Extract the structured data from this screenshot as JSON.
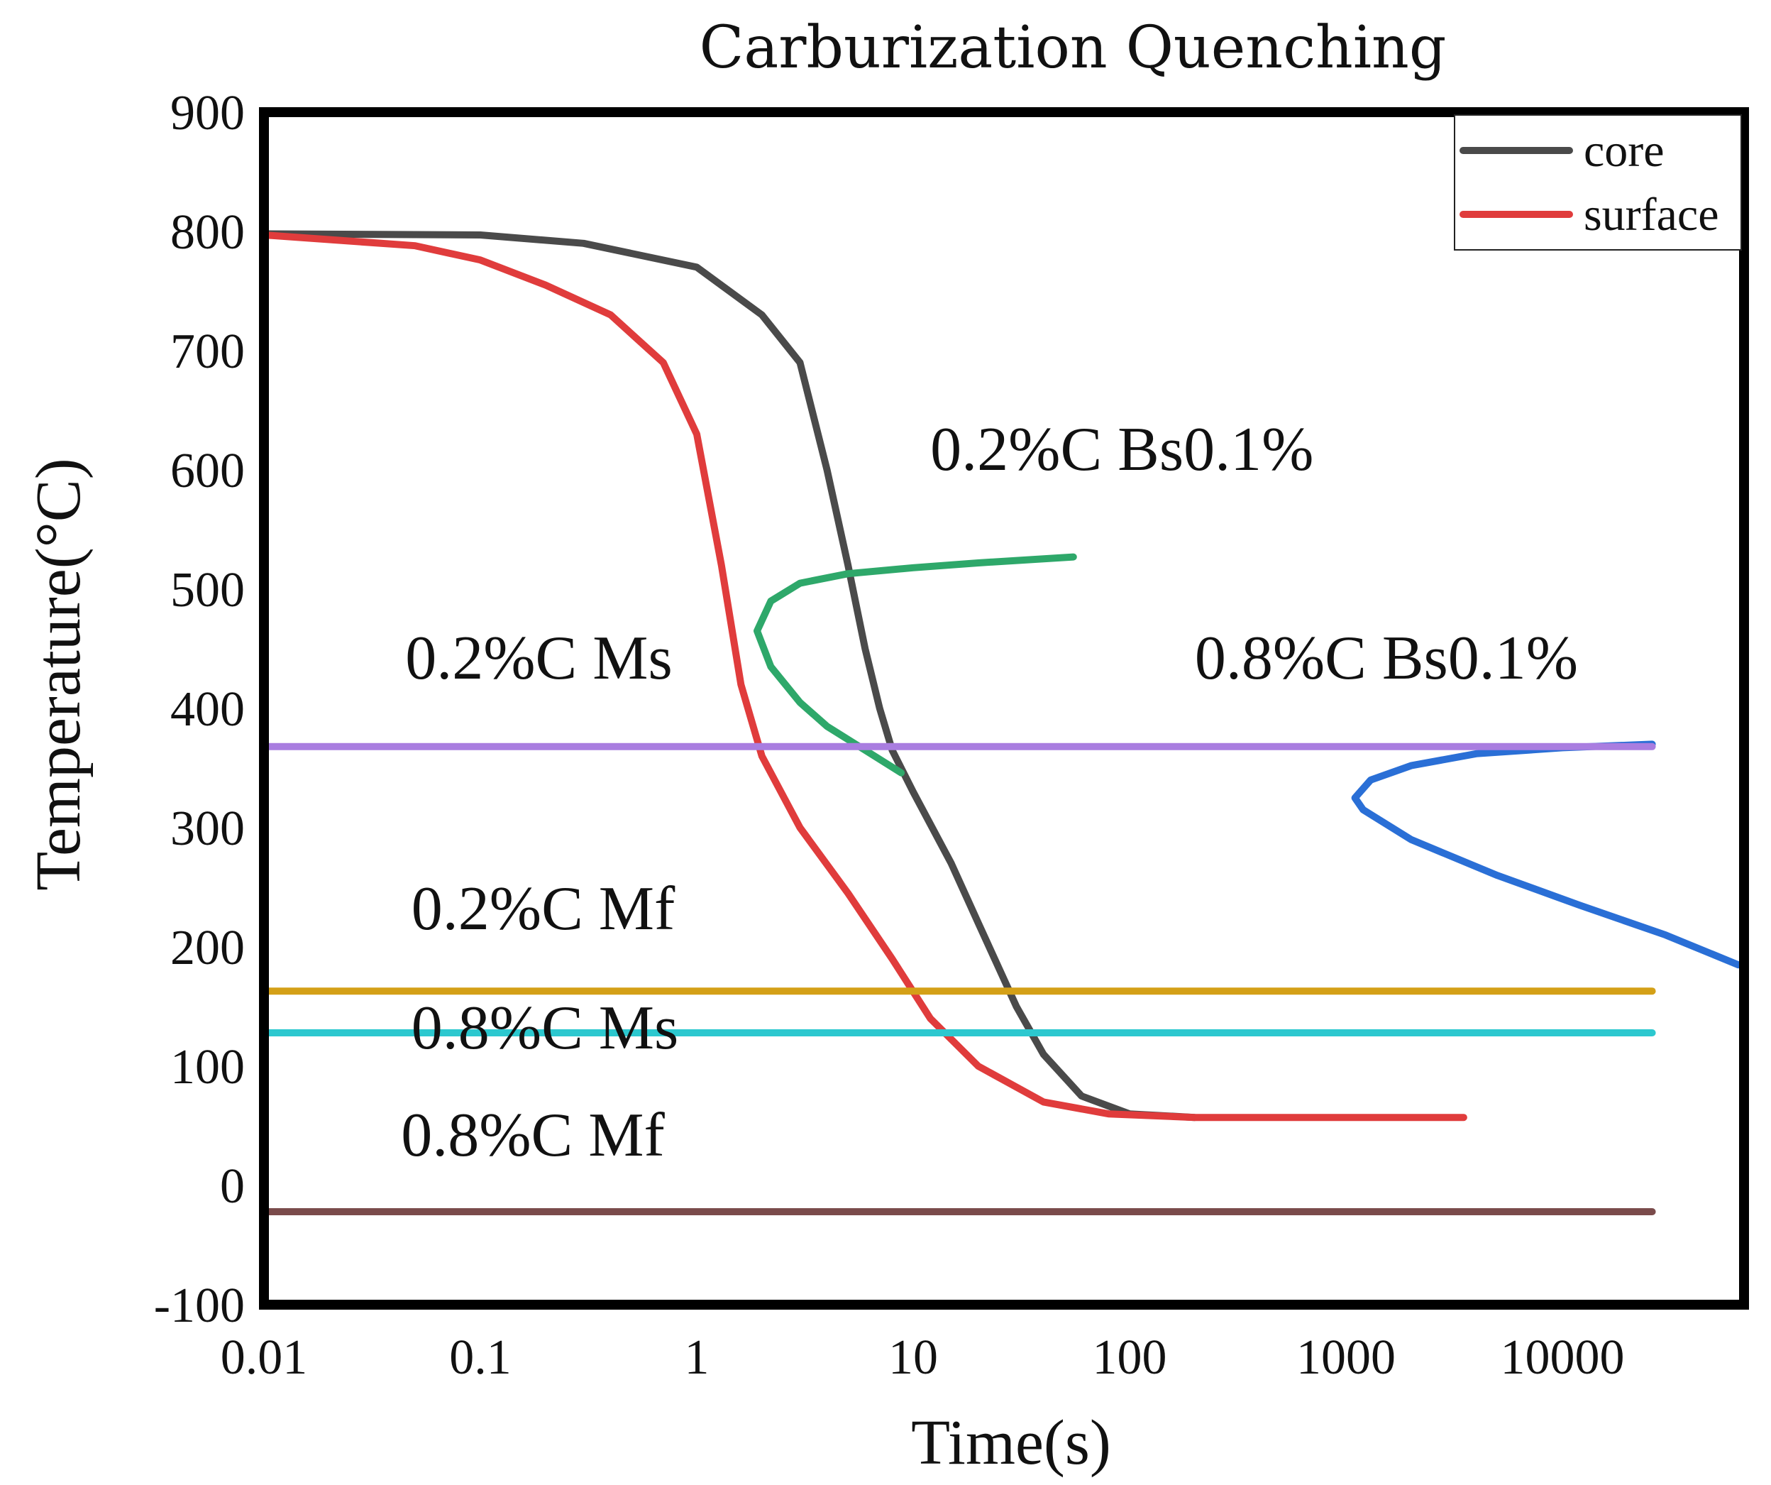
{
  "chart_data": {
    "type": "line",
    "title": "Carburization Quenching",
    "xlabel": "Time(s)",
    "ylabel": "Temperature(°C)",
    "x_scale": "log",
    "xlim": [
      0.01,
      100000
    ],
    "ylim": [
      -100,
      900
    ],
    "x_ticks": [
      0.01,
      0.1,
      1,
      10,
      100,
      1000,
      10000
    ],
    "x_tick_labels": [
      "0.01",
      "0.1",
      "1",
      "10",
      "100",
      "1000",
      "10000"
    ],
    "y_ticks": [
      -100,
      0,
      100,
      200,
      300,
      400,
      500,
      600,
      700,
      800,
      900
    ],
    "y_tick_labels": [
      "-100",
      "0",
      "100",
      "200",
      "300",
      "400",
      "500",
      "600",
      "700",
      "800",
      "900"
    ],
    "legend": {
      "position": "top-right",
      "entries": [
        {
          "name": "core",
          "color": "#4a4a4a"
        },
        {
          "name": "surface",
          "color": "#e03c3c"
        }
      ]
    },
    "series": [
      {
        "name": "core",
        "color": "#4a4a4a",
        "points": [
          [
            0.01,
            798
          ],
          [
            0.1,
            797
          ],
          [
            0.3,
            790
          ],
          [
            1,
            770
          ],
          [
            2,
            730
          ],
          [
            3,
            690
          ],
          [
            4,
            600
          ],
          [
            5,
            520
          ],
          [
            6,
            450
          ],
          [
            7,
            400
          ],
          [
            8,
            365
          ],
          [
            10,
            330
          ],
          [
            15,
            270
          ],
          [
            20,
            220
          ],
          [
            30,
            150
          ],
          [
            40,
            110
          ],
          [
            60,
            75
          ],
          [
            100,
            60
          ],
          [
            200,
            57
          ]
        ]
      },
      {
        "name": "surface",
        "color": "#e03c3c",
        "points": [
          [
            0.01,
            797
          ],
          [
            0.05,
            788
          ],
          [
            0.1,
            776
          ],
          [
            0.2,
            755
          ],
          [
            0.4,
            730
          ],
          [
            0.7,
            690
          ],
          [
            1,
            630
          ],
          [
            1.3,
            520
          ],
          [
            1.6,
            420
          ],
          [
            2,
            360
          ],
          [
            3,
            300
          ],
          [
            5,
            245
          ],
          [
            8,
            190
          ],
          [
            12,
            140
          ],
          [
            20,
            100
          ],
          [
            40,
            70
          ],
          [
            80,
            60
          ],
          [
            200,
            57
          ],
          [
            3500,
            57
          ]
        ]
      },
      {
        "name": "0.2%C Bs0.1%",
        "color": "#2ea86a",
        "points": [
          [
            8.8,
            346
          ],
          [
            6,
            365
          ],
          [
            4,
            385
          ],
          [
            3,
            405
          ],
          [
            2.2,
            435
          ],
          [
            1.9,
            465
          ],
          [
            2.2,
            490
          ],
          [
            3,
            505
          ],
          [
            5,
            513
          ],
          [
            10,
            518
          ],
          [
            20,
            522
          ],
          [
            55,
            527
          ]
        ]
      },
      {
        "name": "0.8%C Bs0.1%",
        "color": "#2a6fd6",
        "points": [
          [
            65000,
            185
          ],
          [
            30000,
            210
          ],
          [
            12000,
            235
          ],
          [
            5000,
            260
          ],
          [
            2000,
            290
          ],
          [
            1200,
            315
          ],
          [
            1100,
            325
          ],
          [
            1300,
            340
          ],
          [
            2000,
            352
          ],
          [
            4000,
            362
          ],
          [
            10000,
            367
          ],
          [
            26000,
            370
          ]
        ]
      },
      {
        "name": "0.2%C Ms",
        "color": "#a97de0",
        "points": [
          [
            0.01,
            368
          ],
          [
            26000,
            368
          ]
        ]
      },
      {
        "name": "0.2%C Mf",
        "color": "#d4a017",
        "points": [
          [
            0.01,
            163
          ],
          [
            26000,
            163
          ]
        ]
      },
      {
        "name": "0.8%C Ms",
        "color": "#2cc8cf",
        "points": [
          [
            0.01,
            128
          ],
          [
            26000,
            128
          ]
        ]
      },
      {
        "name": "0.8%C Mf",
        "color": "#7a4b4b",
        "points": [
          [
            0.01,
            -22
          ],
          [
            26000,
            -22
          ]
        ]
      }
    ],
    "annotations": [
      {
        "name": "ann-02c-bs",
        "text": "0.2%C Bs0.1%",
        "x": 12,
        "y": 600
      },
      {
        "name": "ann-08c-bs",
        "text": "0.8%C Bs0.1%",
        "x": 200,
        "y": 425
      },
      {
        "name": "ann-02c-ms",
        "text": "0.2%C Ms",
        "x": 0.045,
        "y": 425
      },
      {
        "name": "ann-02c-mf",
        "text": "0.2%C Mf",
        "x": 0.048,
        "y": 215
      },
      {
        "name": "ann-08c-ms",
        "text": "0.8%C Ms",
        "x": 0.048,
        "y": 115
      },
      {
        "name": "ann-08c-mf",
        "text": "0.8%C Mf",
        "x": 0.043,
        "y": 25
      }
    ]
  }
}
